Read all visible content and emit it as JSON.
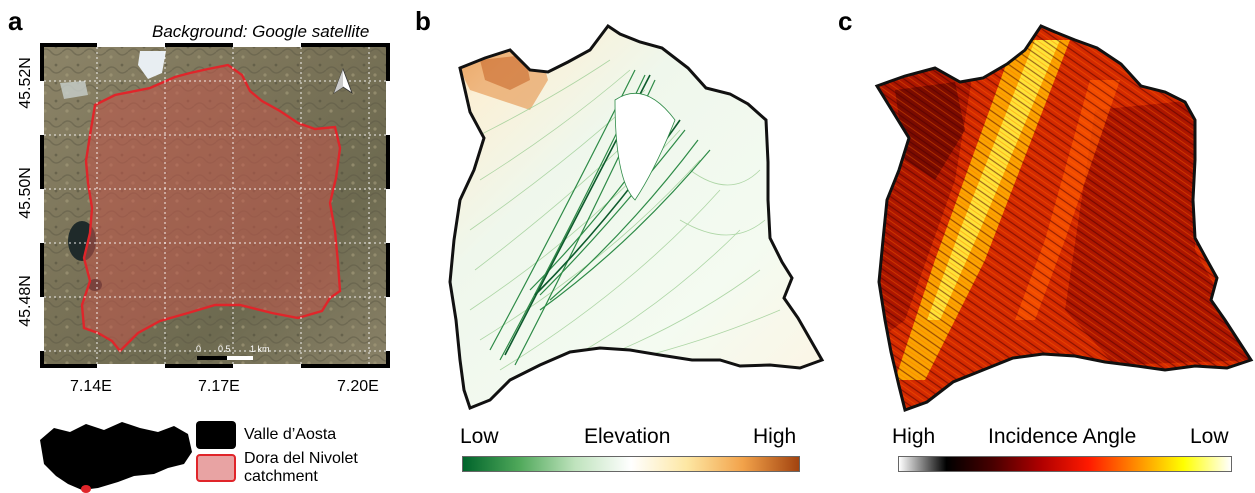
{
  "panels": {
    "a": {
      "letter": "a",
      "credit": "Background: Google satellite",
      "lat_ticks": [
        "45.52N",
        "45.50N",
        "45.48N"
      ],
      "lon_ticks": [
        "7.14E",
        "7.17E",
        "7.20E"
      ],
      "scale_bar": {
        "labels": [
          "0",
          "0.5",
          "1 km"
        ]
      },
      "north_arrow": "north-arrow-icon",
      "legend": [
        {
          "label": "Valle d’Aosta",
          "color": "#000000"
        },
        {
          "label": "Dora del Nivolet catchment",
          "color": "#e8a3a3",
          "border": "#e0252a"
        }
      ]
    },
    "b": {
      "letter": "b",
      "colorbar": {
        "low": "Low",
        "title": "Elevation",
        "high": "High",
        "colors": [
          "#00642b",
          "#4fa85a",
          "#bfe3bd",
          "#ffffff",
          "#fde7a3",
          "#f2a24a",
          "#a2430f"
        ]
      }
    },
    "c": {
      "letter": "c",
      "colorbar": {
        "low": "High",
        "title": "Incidence Angle",
        "high": "Low",
        "colors": [
          "#ffffff",
          "#000000",
          "#4a0000",
          "#b00000",
          "#ff1a00",
          "#ff8c00",
          "#ffff00",
          "#ffffff"
        ]
      }
    }
  }
}
